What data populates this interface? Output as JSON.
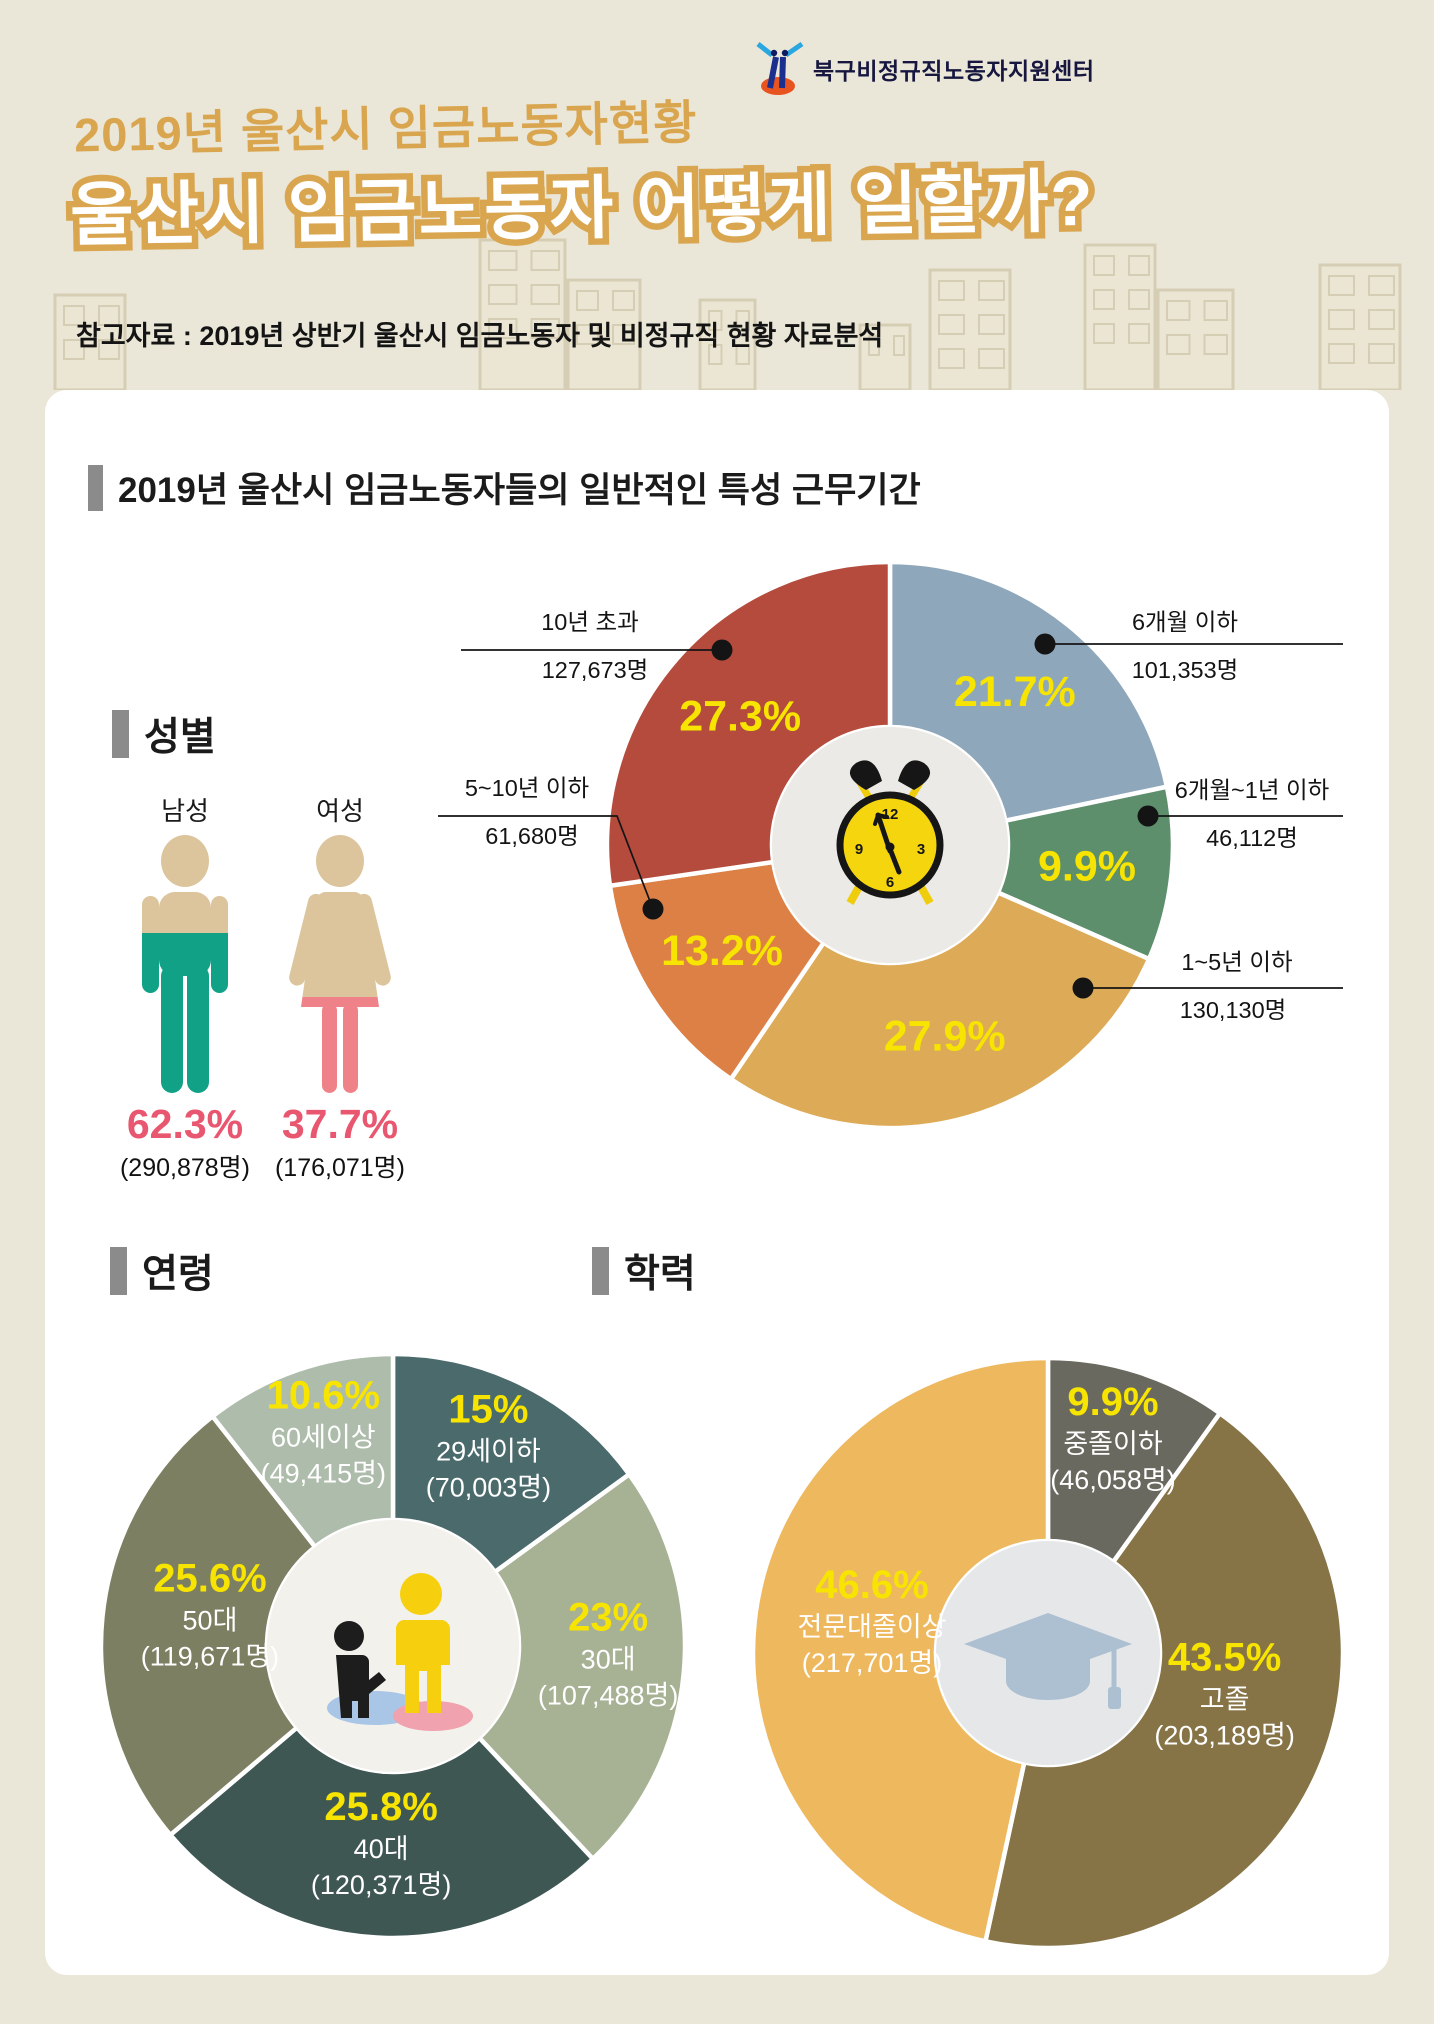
{
  "header": {
    "logo_text": "북구비정규직노동자지원센터",
    "title_small": "2019년 울산시 임금노동자현황",
    "title_main": "울산시 임금노동자 어떻게 일할까?",
    "reference": "참고자료 : 2019년 상반기 울산시 임금노동자 및 비정규직 현황 자료분석",
    "accent_color": "#d9a64f"
  },
  "sections": {
    "duration_title": "2019년 울산시 임금노동자들의 일반적인 특성 근무기간",
    "gender_title": "성별",
    "age_title": "연령",
    "education_title": "학력"
  },
  "chart_data": [
    {
      "id": "duration",
      "type": "pie",
      "title": "근무기간",
      "donut": true,
      "start_angle": 0,
      "legend_position": "callouts",
      "percent_color": "#f7e400",
      "center_icon": "alarm-clock-icon",
      "slices": [
        {
          "label": "6개월 이하",
          "pct": 21.7,
          "pct_text": "21.7%",
          "count": "101,353명",
          "color": "#8fa7bb"
        },
        {
          "label": "6개월~1년 이하",
          "pct": 9.9,
          "pct_text": "9.9%",
          "count": "46,112명",
          "color": "#5d8f6c"
        },
        {
          "label": "1~5년 이하",
          "pct": 27.9,
          "pct_text": "27.9%",
          "count": "130,130명",
          "color": "#ddab58"
        },
        {
          "label": "5~10년 이하",
          "pct": 13.2,
          "pct_text": "13.2%",
          "count": "61,680명",
          "color": "#dd8046"
        },
        {
          "label": "10년 초과",
          "pct": 27.3,
          "pct_text": "27.3%",
          "count": "127,673명",
          "color": "#b44b3c"
        }
      ]
    },
    {
      "id": "gender",
      "type": "pictogram",
      "title": "성별",
      "percent_color": "#e8566f",
      "items": [
        {
          "label": "남성",
          "pct": 62.3,
          "pct_text": "62.3%",
          "count": "(290,878명)",
          "fill_color": "#10a187",
          "base_color": "#dcc59c",
          "icon": "male-figure-icon"
        },
        {
          "label": "여성",
          "pct": 37.7,
          "pct_text": "37.7%",
          "count": "(176,071명)",
          "fill_color": "#ef8289",
          "base_color": "#dcc59c",
          "icon": "female-figure-icon"
        }
      ]
    },
    {
      "id": "age",
      "type": "pie",
      "title": "연령",
      "donut": true,
      "start_angle": 0,
      "percent_color": "#f7e400",
      "label_color": "#ffffff",
      "center_icon": "parent-child-icon",
      "slices": [
        {
          "label": "29세이하",
          "pct": 15,
          "pct_text": "15%",
          "count": "(70,003명)",
          "color": "#4a6a6c"
        },
        {
          "label": "30대",
          "pct": 23,
          "pct_text": "23%",
          "count": "(107,488명)",
          "color": "#a7b194"
        },
        {
          "label": "40대",
          "pct": 25.8,
          "pct_text": "25.8%",
          "count": "(120,371명)",
          "color": "#3f5753"
        },
        {
          "label": "50대",
          "pct": 25.6,
          "pct_text": "25.6%",
          "count": "(119,671명)",
          "color": "#7c7f62"
        },
        {
          "label": "60세이상",
          "pct": 10.6,
          "pct_text": "10.6%",
          "count": "(49,415명)",
          "color": "#aebcab"
        }
      ]
    },
    {
      "id": "education",
      "type": "pie",
      "title": "학력",
      "donut": true,
      "start_angle": 0,
      "percent_color": "#f7e400",
      "label_color": "#ffffff",
      "center_icon": "graduation-cap-icon",
      "slices": [
        {
          "label": "중졸이하",
          "pct": 9.9,
          "pct_text": "9.9%",
          "count": "(46,058명)",
          "color": "#6a695f"
        },
        {
          "label": "고졸",
          "pct": 43.5,
          "pct_text": "43.5%",
          "count": "(203,189명)",
          "color": "#867346"
        },
        {
          "label": "전문대졸이상",
          "pct": 46.6,
          "pct_text": "46.6%",
          "count": "(217,701명)",
          "color": "#eeb95e"
        }
      ]
    }
  ]
}
